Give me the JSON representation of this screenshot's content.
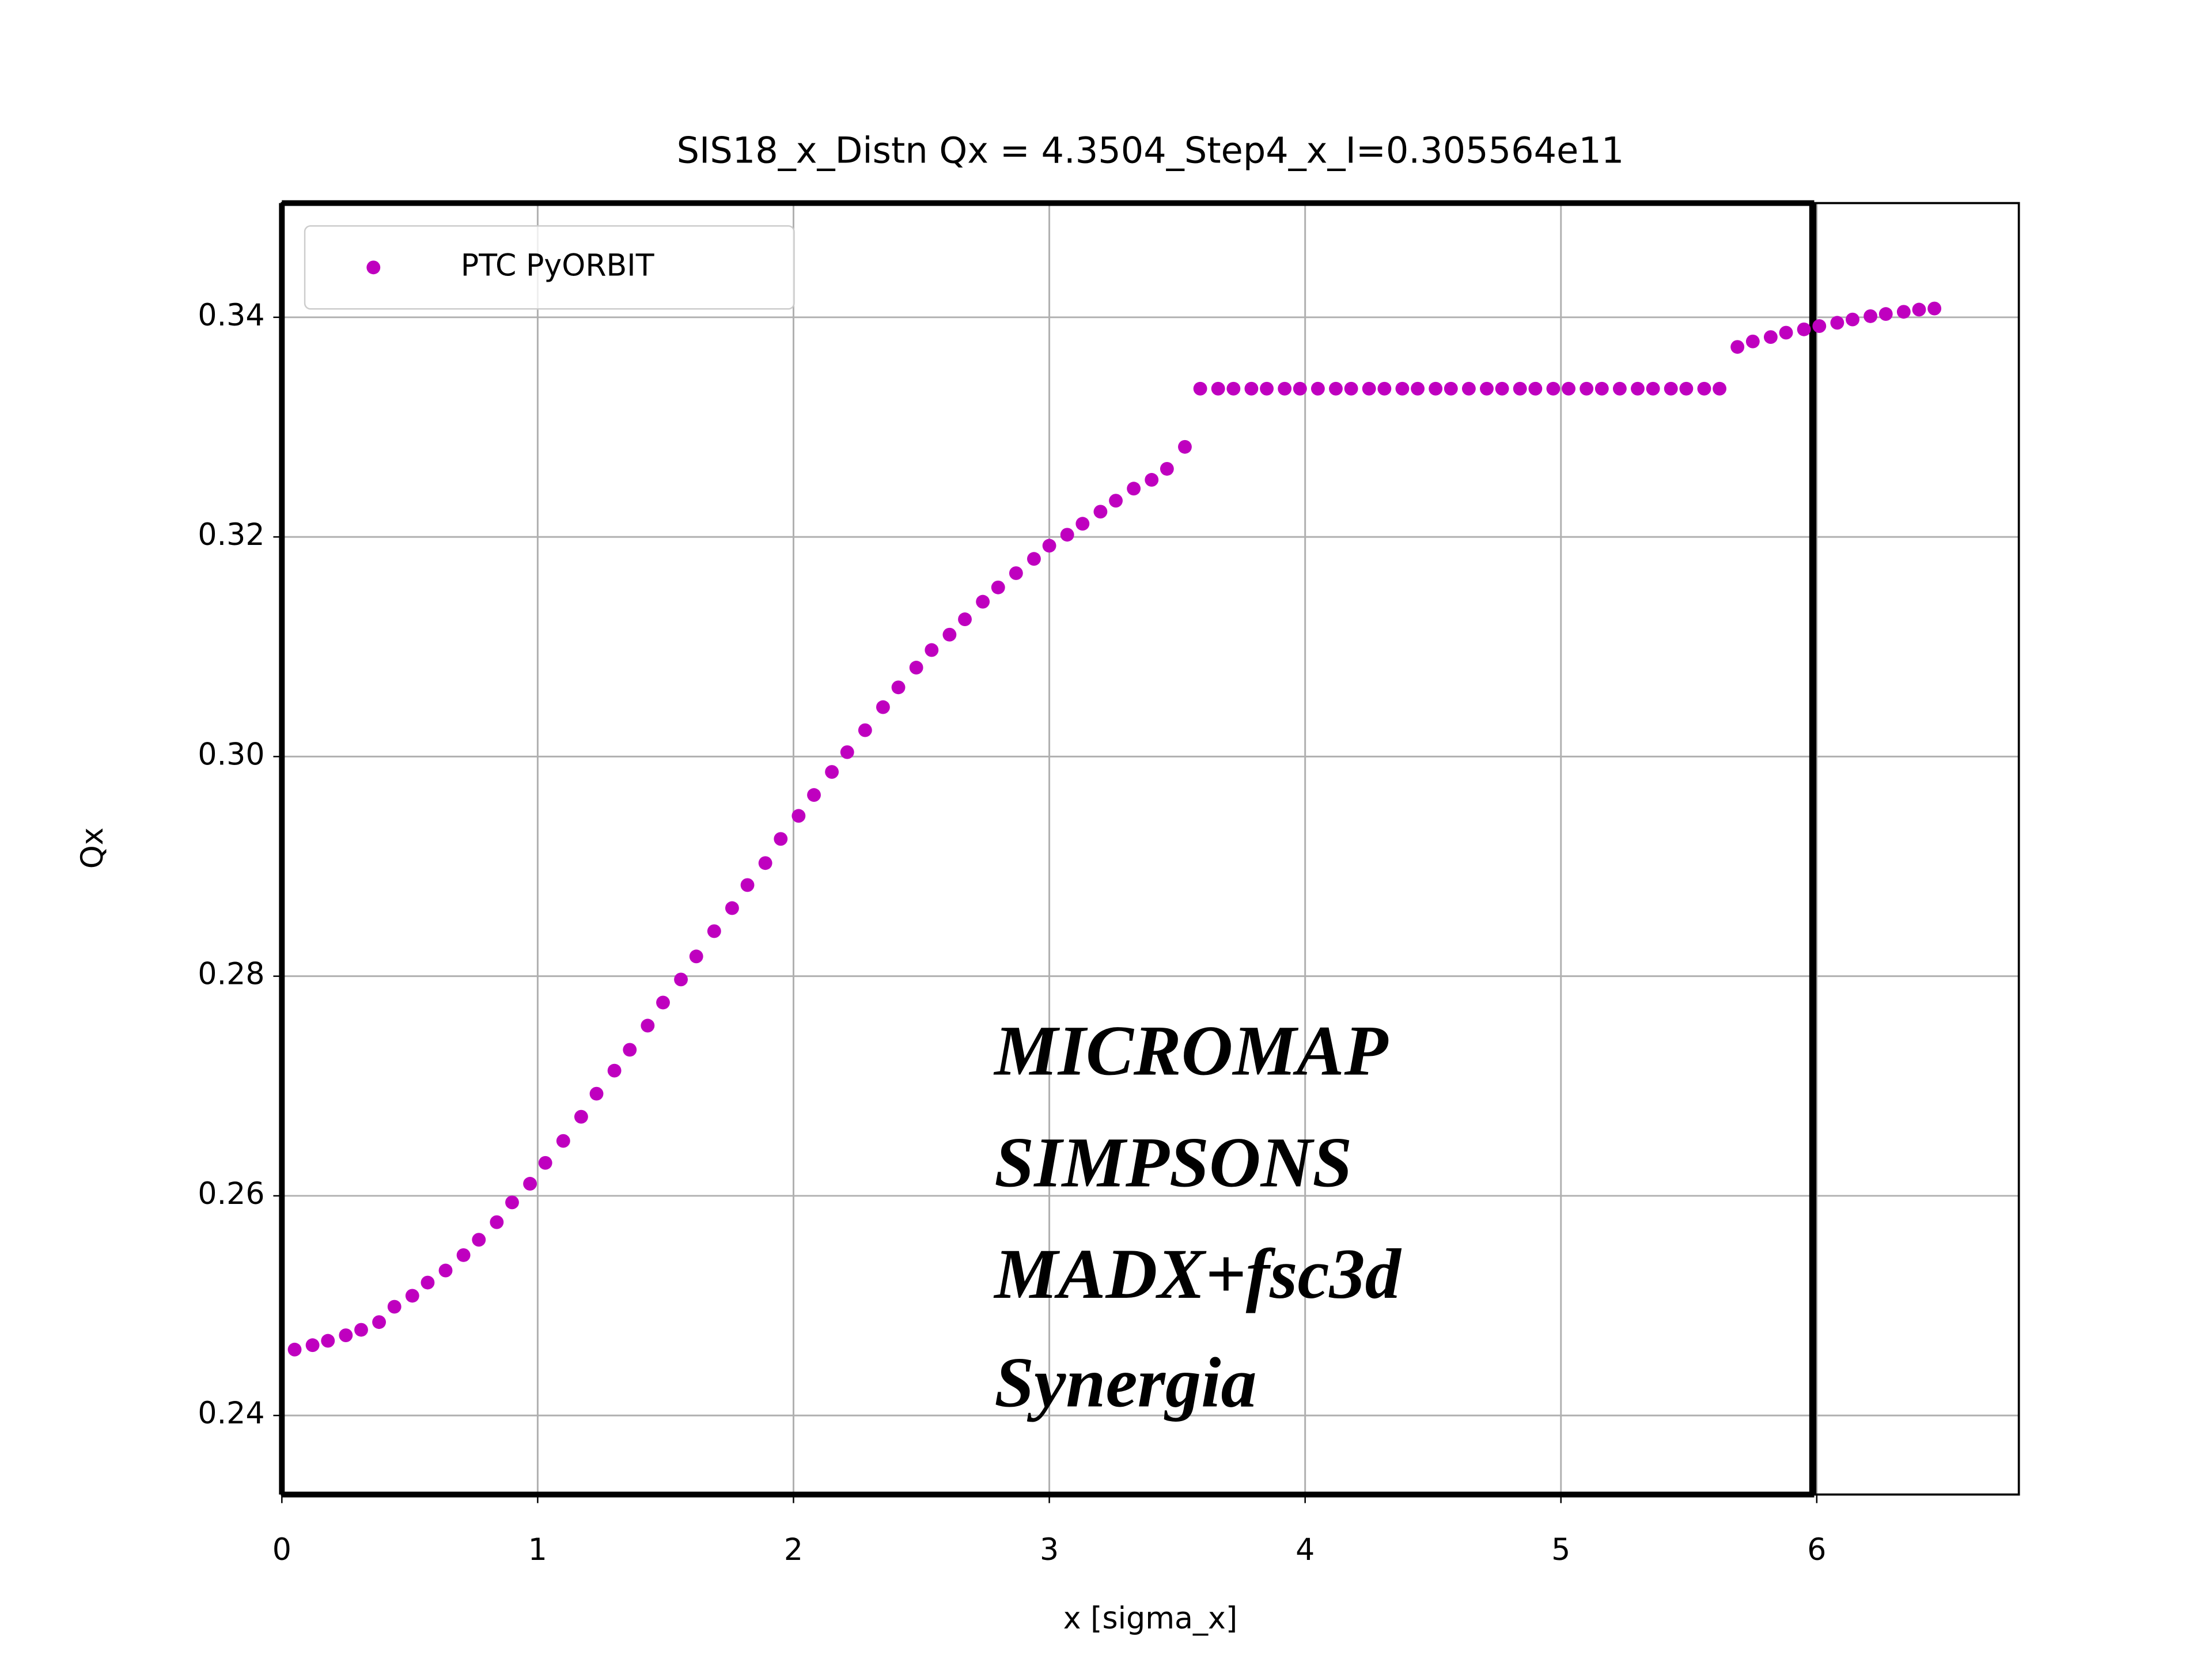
{
  "chart_data": {
    "type": "scatter",
    "title": "SIS18_x_Distn Qx = 4.3504_Step4_x_I=0.305564e11",
    "x_label": "x [sigma_x]",
    "y_label": "Qx",
    "xlim": [
      0,
      6.79
    ],
    "ylim": [
      0.2328,
      0.3504
    ],
    "xticks": [
      0,
      1,
      2,
      3,
      4,
      5,
      6
    ],
    "yticks": [
      0.24,
      0.26,
      0.28,
      {
        "value": 0.3,
        "label": "0.30"
      },
      0.32,
      0.34
    ],
    "grid": true,
    "legend": "upper left",
    "annotations": [
      {
        "text": "MICROMAP",
        "color": "#000000"
      },
      {
        "text": "SIMPSONS",
        "color": "#e01010"
      },
      {
        "text": "MADX+fsc3d",
        "color": "#20e020"
      },
      {
        "text": "Synergia",
        "color": "#1010c0"
      }
    ],
    "series": [
      {
        "name": "PTC PyORBIT",
        "color": "#bf00bf",
        "x": [
          0.05,
          0.12,
          0.18,
          0.25,
          0.31,
          0.38,
          0.44,
          0.51,
          0.57,
          0.64,
          0.71,
          0.77,
          0.84,
          0.9,
          0.97,
          1.03,
          1.1,
          1.17,
          1.23,
          1.3,
          1.36,
          1.43,
          1.49,
          1.56,
          1.62,
          1.69,
          1.76,
          1.82,
          1.89,
          1.95,
          2.02,
          2.08,
          2.15,
          2.21,
          2.28,
          2.35,
          2.41,
          2.48,
          2.54,
          2.61,
          2.67,
          2.74,
          2.8,
          2.87,
          2.94,
          3.0,
          3.07,
          3.13,
          3.2,
          3.26,
          3.33,
          3.4,
          3.46,
          3.53,
          3.59,
          3.66,
          3.72,
          3.79,
          3.85,
          3.92,
          3.98,
          4.05,
          4.12,
          4.18,
          4.25,
          4.31,
          4.38,
          4.44,
          4.51,
          4.57,
          4.64,
          4.71,
          4.77,
          4.84,
          4.9,
          4.97,
          5.03,
          5.1,
          5.16,
          5.23,
          5.3,
          5.36,
          5.43,
          5.49,
          5.56,
          5.62,
          5.69,
          5.75,
          5.82,
          5.88,
          5.95,
          6.01,
          6.08,
          6.14,
          6.21,
          6.27,
          6.34,
          6.4,
          6.46
        ],
        "values": [
          0.246,
          0.2464,
          0.2468,
          0.2473,
          0.2478,
          0.2485,
          0.2499,
          0.2509,
          0.2521,
          0.2532,
          0.2546,
          0.256,
          0.2576,
          0.2594,
          0.2611,
          0.263,
          0.265,
          0.2672,
          0.2693,
          0.2714,
          0.2733,
          0.2755,
          0.2776,
          0.2797,
          0.2818,
          0.2841,
          0.2862,
          0.2883,
          0.2903,
          0.2925,
          0.2946,
          0.2965,
          0.2986,
          0.3004,
          0.3024,
          0.3045,
          0.3063,
          0.3081,
          0.3097,
          0.3111,
          0.3125,
          0.3141,
          0.3154,
          0.3167,
          0.318,
          0.3192,
          0.3202,
          0.3212,
          0.3223,
          0.3233,
          0.3244,
          0.3252,
          0.3262,
          0.3282,
          0.3335,
          0.3335,
          0.3335,
          0.3335,
          0.3335,
          0.3335,
          0.3335,
          0.3335,
          0.3335,
          0.3335,
          0.3335,
          0.3335,
          0.3335,
          0.3335,
          0.3335,
          0.3335,
          0.3335,
          0.3335,
          0.3335,
          0.3335,
          0.3335,
          0.3335,
          0.3335,
          0.3335,
          0.3335,
          0.3335,
          0.3335,
          0.3335,
          0.3335,
          0.3335,
          0.3335,
          0.3335,
          0.3373,
          0.3378,
          0.3382,
          0.3386,
          0.3389,
          0.3392,
          0.3395,
          0.3398,
          0.3401,
          0.3403,
          0.3405,
          0.3407,
          0.3408
        ]
      }
    ]
  }
}
